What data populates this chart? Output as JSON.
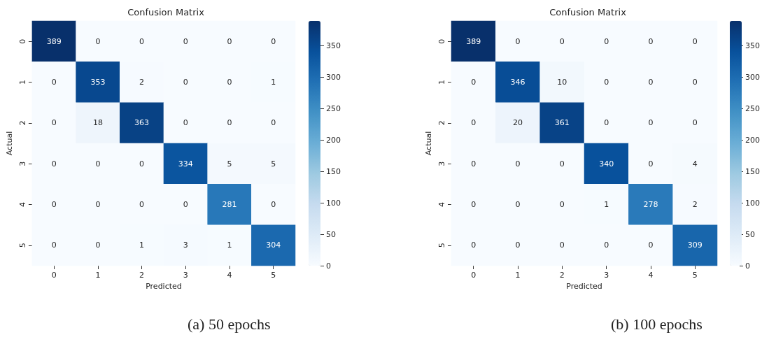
{
  "chart_data": [
    {
      "type": "heatmap",
      "title": "Confusion Matrix",
      "xlabel": "Predicted",
      "ylabel": "Actual",
      "categories": [
        "0",
        "1",
        "2",
        "3",
        "4",
        "5"
      ],
      "y_categories": [
        "0",
        "1",
        "2",
        "3",
        "4",
        "5"
      ],
      "cells": [
        [
          389,
          0,
          0,
          0,
          0,
          0
        ],
        [
          0,
          353,
          2,
          0,
          0,
          1
        ],
        [
          0,
          18,
          363,
          0,
          0,
          0
        ],
        [
          0,
          0,
          0,
          334,
          5,
          5
        ],
        [
          0,
          0,
          0,
          0,
          281,
          0
        ],
        [
          0,
          0,
          1,
          3,
          1,
          304
        ]
      ],
      "data_labels": true,
      "clim": [
        0,
        389
      ],
      "cticks": [
        0,
        50,
        100,
        150,
        200,
        250,
        300,
        350
      ],
      "annotations": [
        "(a) 50 epochs"
      ]
    },
    {
      "type": "heatmap",
      "title": "Confusion Matrix",
      "xlabel": "Predicted",
      "ylabel": "Actual",
      "categories": [
        "0",
        "1",
        "2",
        "3",
        "4",
        "5"
      ],
      "y_categories": [
        "0",
        "1",
        "2",
        "3",
        "4",
        "5"
      ],
      "cells": [
        [
          389,
          0,
          0,
          0,
          0,
          0
        ],
        [
          0,
          346,
          10,
          0,
          0,
          0
        ],
        [
          0,
          20,
          361,
          0,
          0,
          0
        ],
        [
          0,
          0,
          0,
          340,
          0,
          4
        ],
        [
          0,
          0,
          0,
          1,
          278,
          2
        ],
        [
          0,
          0,
          0,
          0,
          0,
          309
        ]
      ],
      "data_labels": true,
      "clim": [
        0,
        389
      ],
      "cticks": [
        0,
        50,
        100,
        150,
        200,
        250,
        300,
        350
      ],
      "annotations": [
        "(b) 100 epochs"
      ]
    }
  ]
}
